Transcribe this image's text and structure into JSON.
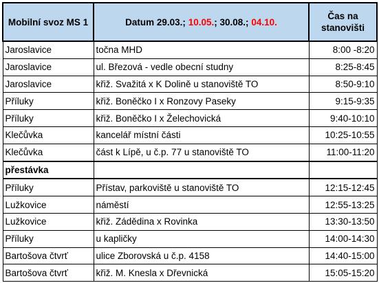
{
  "header": {
    "title": "Mobilní svoz MS 1",
    "date_parts": [
      {
        "text": "Datum 29.03.;",
        "color": "#000000"
      },
      {
        "text": "10.05.",
        "color": "#ff0000"
      },
      {
        "text": ";",
        "color": "#000000"
      },
      {
        "text": "30.08.;",
        "color": "#000000"
      },
      {
        "text": "04.10.",
        "color": "#ff0000"
      }
    ],
    "time": "Čas na stanovišti"
  },
  "table": {
    "rows": [
      [
        "Jaroslavice",
        "točna MHD",
        "8:00 -8:20"
      ],
      [
        "Jaroslavice",
        "ul. Březová - vedle obecní studny",
        "8:25-8:45"
      ],
      [
        "Jaroslavice",
        "křiž. Svažitá x K Dolině u stanoviště TO",
        "8:50-9:10"
      ],
      [
        "Příluky",
        "křiž. Boněčko I x Ronzovy Paseky",
        "9:15-9:35"
      ],
      [
        "Příluky",
        "křiž. Boněčko I x Želechovická",
        "9:40-10:10"
      ],
      [
        "Klečůvka",
        "kancelář místní části",
        "10:25-10:55"
      ],
      [
        "Klečůvka",
        "část k Lípě, u č.p. 77 u stanoviště TO",
        "11:00-11:20"
      ],
      [
        "přestávka"
      ],
      [
        "Příluky",
        "Přístav, parkoviště u stanoviště TO",
        "12:15-12:45"
      ],
      [
        "Lužkovice",
        "náměstí",
        "12:55-13:25"
      ],
      [
        "Lužkovice",
        "křiž. Zádědina x Rovinka",
        "13:30-13:50"
      ],
      [
        "Příluky",
        "u kapličky",
        "14:00-14:30"
      ],
      [
        "Bartošova čtvrť",
        "ulice Zborovská u č.p. 4158",
        "14:40-15:00"
      ],
      [
        "Bartošova čtvrť",
        "křiž. M. Knesla x Dřevnická",
        "15:05-15:20"
      ]
    ]
  }
}
